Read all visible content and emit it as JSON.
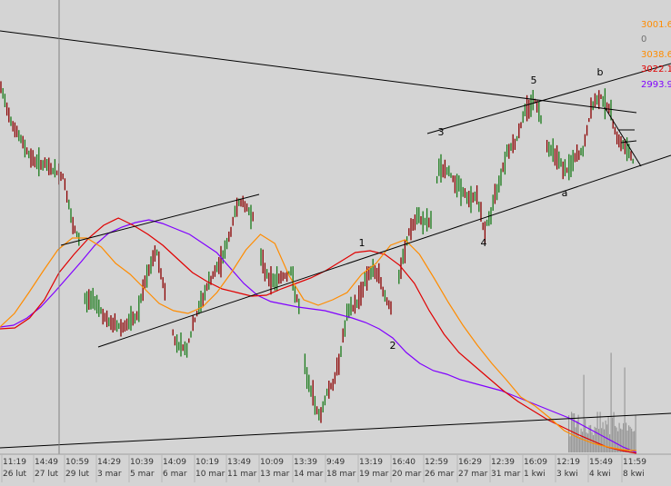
{
  "chart_data": {
    "type": "line",
    "title": "",
    "xlabel": "",
    "ylabel": "",
    "grid": false,
    "time_labels": [
      "11:19",
      "14:49",
      "10:59",
      "14:29",
      "10:39",
      "14:09",
      "10:19",
      "13:49",
      "10:09",
      "13:39",
      "9:49",
      "13:19",
      "16:40",
      "12:59",
      "16:29",
      "12:39",
      "16:09",
      "12:19",
      "15:49",
      "11:59"
    ],
    "date_labels": [
      "26 lut",
      "27 lut",
      "29 lut",
      "3 mar",
      "5 mar",
      "6 mar",
      "10 mar",
      "11 mar",
      "13 mar",
      "14 mar",
      "18 mar",
      "19 mar",
      "20 mar",
      "26 mar",
      "27 mar",
      "31 mar",
      "1 kwi",
      "3 kwi",
      "4 kwi",
      "8 kwi"
    ],
    "legend_values": [
      {
        "value": "3001.6",
        "color": "#ff8c00"
      },
      {
        "value": "0",
        "color": "#707070"
      },
      {
        "value": "3038.6",
        "color": "#ff8c00"
      },
      {
        "value": "3022.1",
        "color": "#e00000"
      },
      {
        "value": "2993.9",
        "color": "#8000ff"
      }
    ],
    "wave_labels": [
      "1",
      "2",
      "3",
      "4",
      "5",
      "a",
      "b"
    ],
    "series": [
      {
        "color": "#8000ff",
        "values": [
          360,
          358,
          350,
          338,
          322,
          305,
          288,
          270,
          257,
          250,
          245,
          242,
          246,
          252,
          258,
          268,
          278,
          295,
          312,
          325,
          332,
          335,
          338,
          340,
          342,
          346,
          350,
          355,
          362,
          372,
          388,
          400,
          408,
          412,
          418,
          422,
          426,
          430,
          436,
          442,
          448,
          454,
          460,
          468,
          476,
          484,
          492,
          498
        ]
      },
      {
        "color": "#e00000",
        "values": [
          362,
          361,
          350,
          330,
          300,
          280,
          262,
          248,
          240,
          248,
          258,
          270,
          285,
          300,
          310,
          318,
          322,
          326,
          325,
          318,
          312,
          306,
          298,
          288,
          278,
          276,
          280,
          292,
          312,
          342,
          368,
          388,
          402,
          416,
          430,
          442,
          452,
          462,
          470,
          478,
          485,
          492,
          496,
          499
        ]
      },
      {
        "color": "#ff8c00",
        "values": [
          360,
          345,
          322,
          298,
          275,
          262,
          262,
          272,
          290,
          302,
          318,
          334,
          342,
          345,
          338,
          322,
          300,
          275,
          258,
          268,
          304,
          330,
          336,
          330,
          322,
          302,
          290,
          270,
          264,
          280,
          306,
          333,
          358,
          380,
          400,
          418,
          437,
          447,
          460,
          474,
          482,
          488,
          492,
          495,
          496
        ]
      }
    ],
    "price_stats": {
      "min": 2830,
      "max": 3068
    }
  }
}
